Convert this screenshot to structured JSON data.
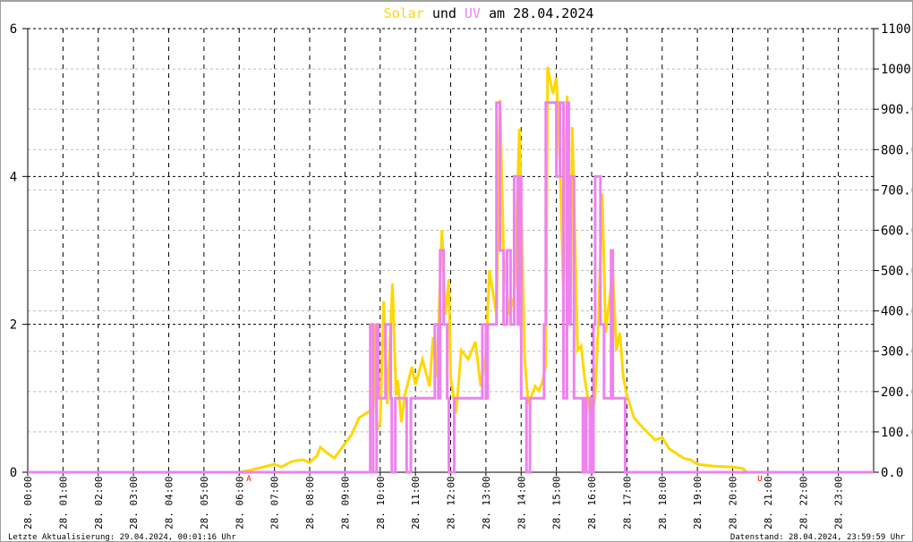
{
  "chart_data": {
    "type": "line",
    "title": {
      "parts": [
        {
          "text": "Solar",
          "color": "#FFD700"
        },
        {
          "text": " und ",
          "color": "#000000"
        },
        {
          "text": "UV",
          "color": "#EE82EE"
        },
        {
          "text": " am 28.04.2024",
          "color": "#000000"
        }
      ]
    },
    "x_range_hours": [
      0,
      24
    ],
    "x_tick_labels": [
      "28. 00:00",
      "28. 01:00",
      "28. 02:00",
      "28. 03:00",
      "28. 04:00",
      "28. 05:00",
      "28. 06:00",
      "28. 07:00",
      "28. 08:00",
      "28. 09:00",
      "28. 10:00",
      "28. 11:00",
      "28. 12:00",
      "28. 13:00",
      "28. 14:00",
      "28. 15:00",
      "28. 16:00",
      "28. 17:00",
      "28. 18:00",
      "28. 19:00",
      "28. 20:00",
      "28. 21:00",
      "28. 22:00",
      "28. 23:00"
    ],
    "y_left": {
      "range": [
        0,
        6
      ],
      "ticks": [
        "0",
        "2",
        "4",
        "6"
      ]
    },
    "y_right": {
      "range": [
        0,
        1100
      ],
      "ticks": [
        "0.0",
        "100.0",
        "200.0",
        "300.0",
        "400.0",
        "500.0",
        "600.0",
        "700.0",
        "800.0",
        "900.0",
        "1000",
        "1100"
      ]
    },
    "grid": true,
    "series": [
      {
        "name": "Solar",
        "axis": "right",
        "color": "#FFD700",
        "points": [
          [
            0,
            0
          ],
          [
            6.0,
            0
          ],
          [
            6.3,
            5
          ],
          [
            6.7,
            13
          ],
          [
            7.0,
            20
          ],
          [
            7.2,
            13
          ],
          [
            7.5,
            27
          ],
          [
            7.8,
            31
          ],
          [
            8.0,
            24
          ],
          [
            8.2,
            40
          ],
          [
            8.3,
            62
          ],
          [
            8.5,
            47
          ],
          [
            8.7,
            35
          ],
          [
            9.0,
            71
          ],
          [
            9.2,
            95
          ],
          [
            9.4,
            135
          ],
          [
            9.6,
            146
          ],
          [
            9.8,
            157
          ],
          [
            9.85,
            368
          ],
          [
            9.9,
            102
          ],
          [
            10.0,
            124
          ],
          [
            10.1,
            424
          ],
          [
            10.2,
            169
          ],
          [
            10.35,
            468
          ],
          [
            10.45,
            191
          ],
          [
            10.5,
            228
          ],
          [
            10.6,
            124
          ],
          [
            10.7,
            191
          ],
          [
            10.9,
            262
          ],
          [
            11.0,
            217
          ],
          [
            11.2,
            280
          ],
          [
            11.4,
            213
          ],
          [
            11.5,
            335
          ],
          [
            11.6,
            235
          ],
          [
            11.75,
            601
          ],
          [
            11.85,
            390
          ],
          [
            11.95,
            479
          ],
          [
            12.0,
            235
          ],
          [
            12.15,
            146
          ],
          [
            12.3,
            302
          ],
          [
            12.5,
            280
          ],
          [
            12.7,
            324
          ],
          [
            12.85,
            213
          ],
          [
            13.0,
            290
          ],
          [
            13.1,
            501
          ],
          [
            13.3,
            390
          ],
          [
            13.4,
            923
          ],
          [
            13.5,
            546
          ],
          [
            13.65,
            390
          ],
          [
            13.8,
            435
          ],
          [
            13.95,
            852
          ],
          [
            14.1,
            280
          ],
          [
            14.2,
            169
          ],
          [
            14.4,
            213
          ],
          [
            14.5,
            202
          ],
          [
            14.6,
            224
          ],
          [
            14.7,
            264
          ],
          [
            14.75,
            1005
          ],
          [
            14.9,
            938
          ],
          [
            15.0,
            978
          ],
          [
            15.1,
            767
          ],
          [
            15.2,
            435
          ],
          [
            15.3,
            934
          ],
          [
            15.4,
            390
          ],
          [
            15.45,
            856
          ],
          [
            15.6,
            302
          ],
          [
            15.7,
            313
          ],
          [
            15.8,
            235
          ],
          [
            16.0,
            124
          ],
          [
            16.1,
            191
          ],
          [
            16.2,
            390
          ],
          [
            16.3,
            690
          ],
          [
            16.4,
            346
          ],
          [
            16.6,
            501
          ],
          [
            16.7,
            302
          ],
          [
            16.8,
            346
          ],
          [
            16.9,
            235
          ],
          [
            17.0,
            191
          ],
          [
            17.2,
            135
          ],
          [
            17.5,
            106
          ],
          [
            17.8,
            80
          ],
          [
            18.0,
            86
          ],
          [
            18.2,
            58
          ],
          [
            18.4,
            47
          ],
          [
            18.6,
            35
          ],
          [
            18.8,
            31
          ],
          [
            19.0,
            20
          ],
          [
            19.5,
            15
          ],
          [
            20.0,
            13
          ],
          [
            20.3,
            9
          ],
          [
            20.4,
            0
          ],
          [
            24,
            0
          ]
        ]
      },
      {
        "name": "UV",
        "axis": "left",
        "color": "#EE82EE",
        "step": true,
        "points": [
          [
            0,
            0
          ],
          [
            9.72,
            2
          ],
          [
            9.8,
            0
          ],
          [
            9.9,
            2
          ],
          [
            9.95,
            1
          ],
          [
            10.15,
            2
          ],
          [
            10.3,
            1
          ],
          [
            10.33,
            0
          ],
          [
            10.43,
            1
          ],
          [
            10.75,
            0
          ],
          [
            10.87,
            1
          ],
          [
            11.55,
            2
          ],
          [
            11.65,
            1
          ],
          [
            11.7,
            3
          ],
          [
            11.8,
            2
          ],
          [
            11.9,
            1
          ],
          [
            11.95,
            0
          ],
          [
            12.1,
            1
          ],
          [
            12.9,
            2
          ],
          [
            13.0,
            1
          ],
          [
            13.05,
            2
          ],
          [
            13.3,
            5
          ],
          [
            13.4,
            3
          ],
          [
            13.5,
            2
          ],
          [
            13.6,
            3
          ],
          [
            13.7,
            2
          ],
          [
            13.8,
            4
          ],
          [
            13.9,
            2
          ],
          [
            13.95,
            4
          ],
          [
            14.0,
            1
          ],
          [
            14.15,
            0
          ],
          [
            14.25,
            1
          ],
          [
            14.65,
            2
          ],
          [
            14.7,
            5
          ],
          [
            15.0,
            4
          ],
          [
            15.1,
            5
          ],
          [
            15.2,
            1
          ],
          [
            15.3,
            5
          ],
          [
            15.35,
            2
          ],
          [
            15.4,
            4
          ],
          [
            15.5,
            1
          ],
          [
            15.75,
            0
          ],
          [
            15.8,
            1
          ],
          [
            15.85,
            0
          ],
          [
            15.95,
            1
          ],
          [
            16.0,
            0
          ],
          [
            16.05,
            2
          ],
          [
            16.1,
            4
          ],
          [
            16.25,
            2
          ],
          [
            16.35,
            1
          ],
          [
            16.55,
            3
          ],
          [
            16.6,
            1
          ],
          [
            16.95,
            0
          ],
          [
            24,
            0
          ]
        ]
      }
    ],
    "markers": [
      {
        "label": "A",
        "hour": 6.05,
        "color": "#FF0000"
      },
      {
        "label": "U",
        "hour": 20.55,
        "color": "#FF0000"
      }
    ]
  },
  "footer": {
    "last_update": "Letzte Aktualisierung: 29.04.2024, 00:01:16 Uhr",
    "data_status": "Datenstand: 28.04.2024, 23:59:59 Uhr"
  }
}
